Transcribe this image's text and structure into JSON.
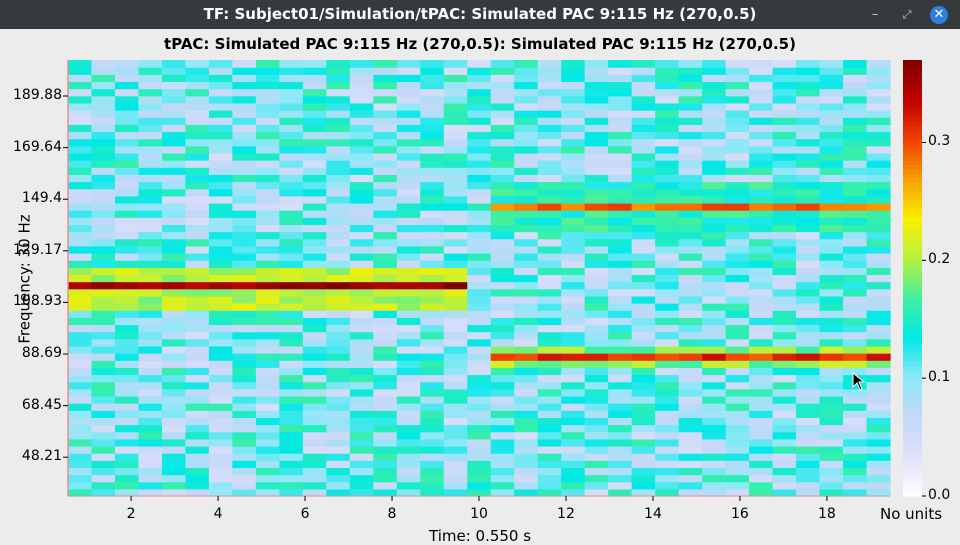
{
  "window": {
    "title": "TF: Subject01/Simulation/tPAC: Simulated PAC 9:115 Hz (270,0.5)",
    "buttons": {
      "minimize": "–",
      "maximize": "⤢",
      "close": "✕"
    }
  },
  "chart_data": {
    "type": "heatmap",
    "title": "tPAC: Simulated PAC 9:115 Hz (270,0.5): Simulated PAC 9:115 Hz (270,0.5)",
    "xlabel": "Time: 0.550 s",
    "ylabel": "Frequency: 30 Hz",
    "colorbar_label": "No units",
    "x_tick_labels": [
      "2",
      "4",
      "6",
      "8",
      "10",
      "12",
      "14",
      "16",
      "18"
    ],
    "x_tick_values": [
      2,
      4,
      6,
      8,
      10,
      12,
      14,
      16,
      18
    ],
    "xlim": [
      0.55,
      19.45
    ],
    "n_time_bins": 35,
    "y_tick_labels": [
      "189.88",
      "169.64",
      "149.4",
      "129.17",
      "108.93",
      "88.69",
      "68.45",
      "48.21"
    ],
    "y_tick_values": [
      189.88,
      169.64,
      149.4,
      129.17,
      108.93,
      88.69,
      68.45,
      48.21
    ],
    "ylim": [
      33,
      204
    ],
    "n_freq_bins": 61,
    "colorbar_ticks": [
      0.0,
      0.1,
      0.2,
      0.3
    ],
    "colorbar_tick_labels": [
      "0.0",
      "0.1",
      "0.2",
      "0.3"
    ],
    "clim": [
      0,
      0.37
    ],
    "colormap": [
      "#ffffff",
      "#e0e0fa",
      "#c4d8f8",
      "#8ee8f6",
      "#00e8e8",
      "#40f0a0",
      "#b8f040",
      "#f8f000",
      "#f8a000",
      "#f04000",
      "#c00000",
      "#800000"
    ],
    "background_level": 0.105,
    "structure": [
      {
        "t_start": 0.55,
        "t_end": 9.7,
        "peak_freq": 115,
        "peak_value": 0.355,
        "side_band_value": 0.205,
        "side_band_halfwidth": 9
      },
      {
        "t_start": 10.2,
        "t_end": 19.45,
        "peak_freq": 146,
        "peak_value": 0.29,
        "side_band_value": 0.15,
        "side_band_halfwidth": 10
      },
      {
        "t_start": 10.2,
        "t_end": 19.45,
        "peak_freq": 87,
        "peak_value": 0.31,
        "side_band_value": 0.19,
        "side_band_halfwidth": 4
      }
    ],
    "grid": false,
    "legend": "none"
  }
}
